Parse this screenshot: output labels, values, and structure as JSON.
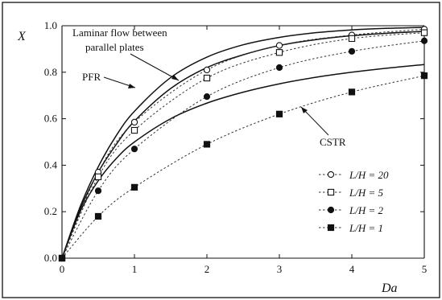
{
  "chart_data": {
    "type": "line",
    "xlabel": "Da",
    "ylabel": "X",
    "xlim": [
      0,
      5
    ],
    "ylim": [
      0,
      1.0
    ],
    "xticks": [
      "0",
      "1",
      "2",
      "3",
      "4",
      "5"
    ],
    "yticks": [
      "0.0",
      "0.2",
      "0.4",
      "0.6",
      "0.8",
      "1.0"
    ],
    "grid": false,
    "legend_position": "bottom-right",
    "curves": [
      {
        "name": "PFR",
        "style": "solid",
        "x": [
          0,
          0.25,
          0.5,
          0.75,
          1,
          1.5,
          2,
          2.5,
          3,
          3.5,
          4,
          4.5,
          5
        ],
        "y": [
          0,
          0.221,
          0.393,
          0.528,
          0.632,
          0.777,
          0.865,
          0.918,
          0.95,
          0.97,
          0.982,
          0.989,
          0.993
        ]
      },
      {
        "name": "Laminar flow between parallel plates",
        "style": "solid",
        "x": [
          0,
          0.25,
          0.5,
          0.75,
          1,
          1.5,
          2,
          2.5,
          3,
          3.5,
          4,
          4.5,
          5
        ],
        "y": [
          0,
          0.21,
          0.37,
          0.49,
          0.59,
          0.73,
          0.82,
          0.875,
          0.915,
          0.94,
          0.957,
          0.968,
          0.976
        ]
      },
      {
        "name": "CSTR",
        "style": "solid",
        "x": [
          0,
          0.25,
          0.5,
          0.75,
          1,
          1.5,
          2,
          2.5,
          3,
          3.5,
          4,
          4.5,
          5
        ],
        "y": [
          0,
          0.2,
          0.333,
          0.429,
          0.5,
          0.6,
          0.667,
          0.714,
          0.75,
          0.778,
          0.8,
          0.818,
          0.833
        ]
      }
    ],
    "series": [
      {
        "name": "L/H = 20",
        "marker": "open-circle",
        "x": [
          0,
          0.5,
          1,
          2,
          3,
          4,
          5
        ],
        "y": [
          0,
          0.37,
          0.585,
          0.81,
          0.915,
          0.96,
          0.985
        ]
      },
      {
        "name": "L/H = 5",
        "marker": "open-square",
        "x": [
          0,
          0.5,
          1,
          2,
          3,
          4,
          5
        ],
        "y": [
          0,
          0.35,
          0.55,
          0.775,
          0.885,
          0.945,
          0.97
        ]
      },
      {
        "name": "L/H = 2",
        "marker": "filled-circle",
        "x": [
          0,
          0.5,
          1,
          2,
          3,
          4,
          5
        ],
        "y": [
          0,
          0.29,
          0.47,
          0.695,
          0.82,
          0.89,
          0.935
        ]
      },
      {
        "name": "L/H = 1",
        "marker": "filled-square",
        "x": [
          0,
          0.5,
          1,
          2,
          3,
          4,
          5
        ],
        "y": [
          0,
          0.18,
          0.305,
          0.49,
          0.62,
          0.715,
          0.785
        ]
      }
    ],
    "annotations": {
      "laminar_line1": "Laminar flow between",
      "laminar_line2": "parallel plates",
      "pfr": "PFR",
      "cstr": "CSTR"
    }
  }
}
